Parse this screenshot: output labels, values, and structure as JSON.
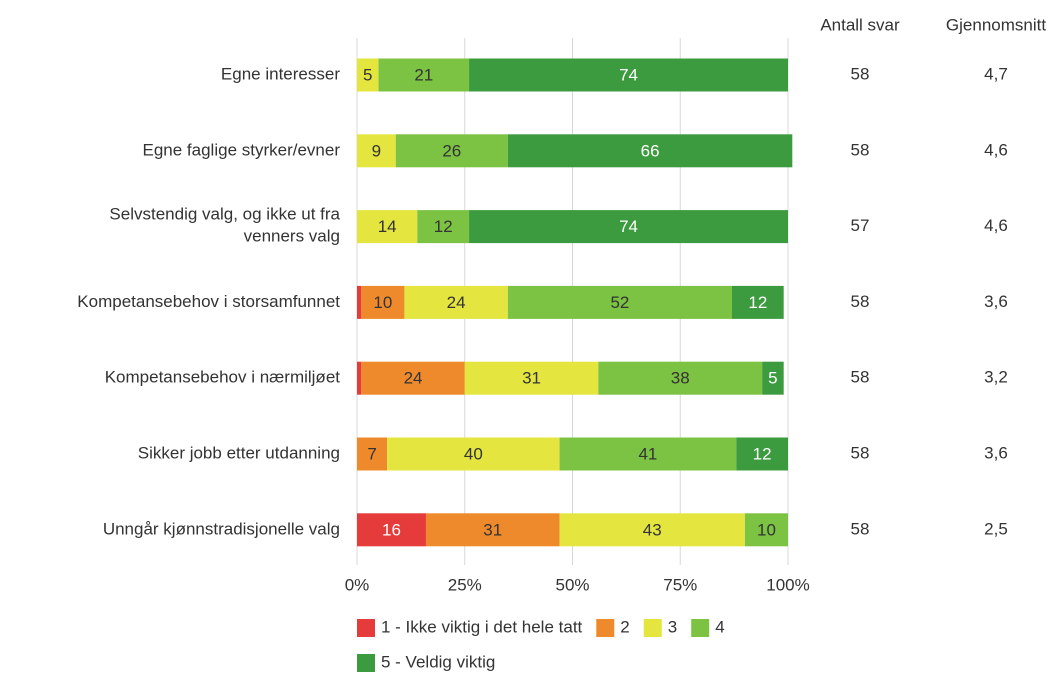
{
  "chart_data": {
    "type": "stacked-bar-horizontal",
    "categories": [
      "Egne interesser",
      "Egne faglige styrker/evner",
      "Selvstendig valg, og ikke ut fra\nvenners valg",
      "Kompetansebehov i storsamfunnet",
      "Kompetansebehov i nærmiljøet",
      "Sikker jobb etter utdanning",
      "Unngår kjønnstradisjonelle valg"
    ],
    "series": [
      {
        "name": "1 - Ikke viktig i det hele tatt",
        "color": "#e53b3b",
        "values": [
          0,
          0,
          0,
          1,
          1,
          0,
          16
        ],
        "value_labels": [
          null,
          null,
          null,
          null,
          null,
          null,
          "16"
        ]
      },
      {
        "name": "2",
        "color": "#ef8a2c",
        "values": [
          0,
          0,
          0,
          10,
          24,
          7,
          31
        ],
        "value_labels": [
          null,
          null,
          null,
          "10",
          "24",
          "7",
          "31"
        ]
      },
      {
        "name": "3",
        "color": "#e4e63f",
        "values": [
          5,
          9,
          14,
          24,
          31,
          40,
          43
        ],
        "value_labels": [
          "5",
          "9",
          "14",
          "24",
          "31",
          "40",
          "43"
        ]
      },
      {
        "name": "4",
        "color": "#7cc243",
        "values": [
          21,
          26,
          12,
          52,
          38,
          41,
          10
        ],
        "value_labels": [
          "21",
          "26",
          "12",
          "52",
          "38",
          "41",
          "10"
        ]
      },
      {
        "name": "5 - Veldig viktig",
        "color": "#3d9b3f",
        "values": [
          74,
          66,
          74,
          12,
          5,
          12,
          0
        ],
        "value_labels": [
          "74",
          "66",
          "74",
          "12",
          "5",
          "12",
          null
        ]
      }
    ],
    "xlim": [
      0,
      100
    ],
    "xticks": [
      {
        "value": 0,
        "label": "0%"
      },
      {
        "value": 25,
        "label": "25%"
      },
      {
        "value": 50,
        "label": "50%"
      },
      {
        "value": 75,
        "label": "75%"
      },
      {
        "value": 100,
        "label": "100%"
      }
    ],
    "grid": true,
    "columns": [
      {
        "name": "Antall svar",
        "values": [
          58,
          58,
          57,
          58,
          58,
          58,
          58
        ]
      },
      {
        "name": "Gjennomsnitt",
        "values": [
          4.7,
          4.6,
          4.6,
          3.6,
          3.2,
          3.6,
          2.5
        ],
        "value_labels": [
          "4,7",
          "4,6",
          "4,6",
          "3,6",
          "3,2",
          "3,6",
          "2,5"
        ]
      }
    ]
  }
}
